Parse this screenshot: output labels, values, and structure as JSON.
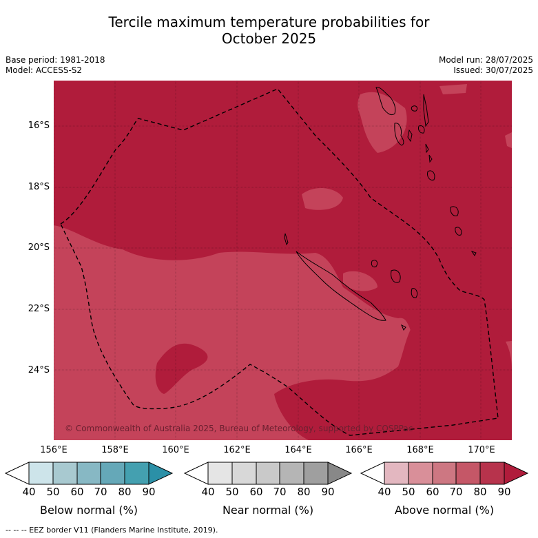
{
  "title_line1": "Tercile maximum temperature probabilities for",
  "title_line2": "October 2025",
  "meta_left": {
    "base_period": "Base period: 1981-2018",
    "model": "Model: ACCESS-S2"
  },
  "meta_right": {
    "model_run": "Model run: 28/07/2025",
    "issued": "Issued: 30/07/2025"
  },
  "map": {
    "copyright": "© Commonwealth of Australia 2025, Bureau of Meteorology, supported by COSPPac",
    "lat_labels": [
      "16°S",
      "18°S",
      "20°S",
      "22°S",
      "24°S"
    ],
    "lon_labels": [
      "156°E",
      "158°E",
      "160°E",
      "162°E",
      "164°E",
      "166°E",
      "168°E",
      "170°E"
    ],
    "colors": {
      "above_80_90": "#b01c3b",
      "above_70_80": "#c4435a",
      "coastline": "#000000"
    }
  },
  "colorbars": {
    "ticks": [
      "40",
      "50",
      "60",
      "70",
      "80",
      "90"
    ],
    "below": {
      "label": "Below normal (%)",
      "colors": [
        "#ffffff",
        "#cde4ea",
        "#a8c9d0",
        "#87b8c4",
        "#65a8b8",
        "#44a0b0",
        "#2b90a7"
      ]
    },
    "near": {
      "label": "Near normal (%)",
      "colors": [
        "#ffffff",
        "#e5e5e5",
        "#d8d8d8",
        "#c9c9c9",
        "#b5b5b5",
        "#9f9f9f",
        "#888888"
      ]
    },
    "above": {
      "label": "Above normal (%)",
      "colors": [
        "#ffffff",
        "#e3b7c0",
        "#d98f99",
        "#cd7782",
        "#c55767",
        "#b7334c",
        "#b01c3b"
      ]
    }
  },
  "footer": "-- -- -- EEZ border V11 (Flanders Marine Institute, 2019)."
}
